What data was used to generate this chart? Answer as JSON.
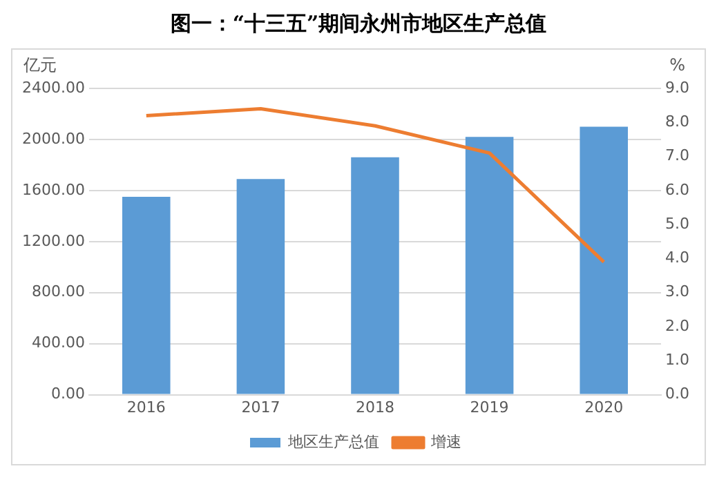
{
  "chart_data": {
    "type": "bar",
    "title": "图一：“十三五”期间永州市地区生产总值",
    "ylabel": "亿元",
    "y2label": "%",
    "categories": [
      "2016",
      "2017",
      "2018",
      "2019",
      "2020"
    ],
    "series": [
      {
        "name": "地区生产总值",
        "color": "#5b9bd5",
        "values": [
          1550,
          1690,
          1860,
          2020,
          2100
        ]
      },
      {
        "name": "增速",
        "type": "line",
        "axis": "y2",
        "color": "#ed7d31",
        "values": [
          8.2,
          8.4,
          7.9,
          7.1,
          3.9
        ]
      }
    ],
    "ylim": [
      0,
      2400
    ],
    "yticks": [
      {
        "value": 0,
        "label": "0.00"
      },
      {
        "value": 400,
        "label": "400.00"
      },
      {
        "value": 800,
        "label": "800.00"
      },
      {
        "value": 1200,
        "label": "1200.00"
      },
      {
        "value": 1600,
        "label": "1600.00"
      },
      {
        "value": 2000,
        "label": "2000.00"
      },
      {
        "value": 2400,
        "label": "2400.00"
      }
    ],
    "y2lim": [
      0,
      9
    ],
    "y2ticks": [
      {
        "value": 0,
        "label": "0.0"
      },
      {
        "value": 1,
        "label": "1.0"
      },
      {
        "value": 2,
        "label": "2.0"
      },
      {
        "value": 3,
        "label": "3.0"
      },
      {
        "value": 4,
        "label": "4.0"
      },
      {
        "value": 5,
        "label": "5.0"
      },
      {
        "value": 6,
        "label": "6.0"
      },
      {
        "value": 7,
        "label": "7.0"
      },
      {
        "value": 8,
        "label": "8.0"
      },
      {
        "value": 9,
        "label": "9.0"
      }
    ],
    "grid": "y",
    "legend": "bottom",
    "marker": "none"
  }
}
